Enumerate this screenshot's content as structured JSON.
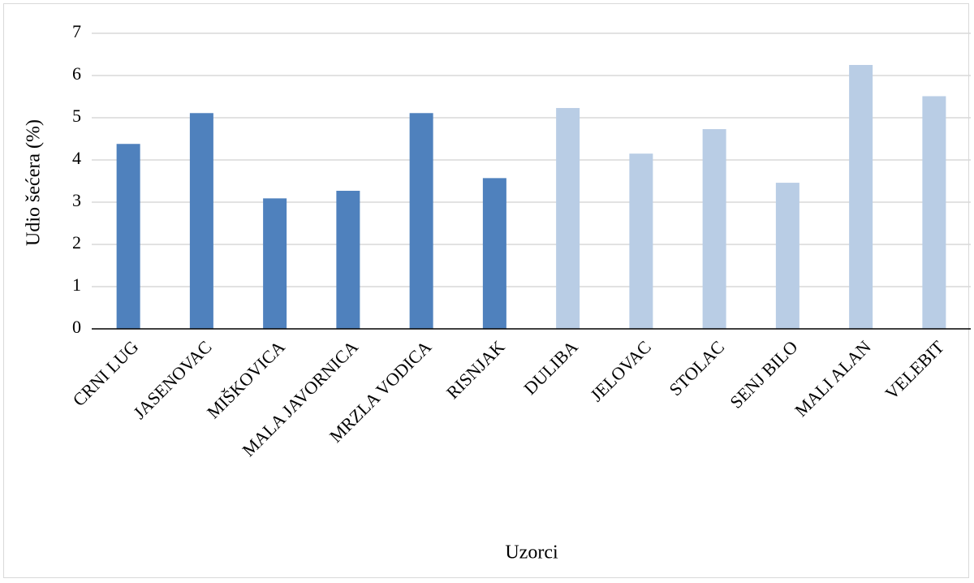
{
  "chart_data": {
    "type": "bar",
    "xlabel": "Uzorci",
    "ylabel": "Udio šećera (%)",
    "ylim": [
      0,
      7
    ],
    "yticks": [
      0,
      1,
      2,
      3,
      4,
      5,
      6,
      7
    ],
    "grid": true,
    "legend": "none",
    "categories": [
      "CRNI LUG",
      "JASENOVAC",
      "MIŠKOVICA",
      "MALA JAVORNICA",
      "MRZLA VODICA",
      "RISNJAK",
      "DULIBA",
      "JELOVAC",
      "STOLAC",
      "SENJ BILO",
      "MALI ALAN",
      "VELEBIT"
    ],
    "values": [
      4.38,
      5.11,
      3.09,
      3.27,
      5.11,
      3.57,
      5.23,
      4.15,
      4.73,
      3.46,
      6.25,
      5.51
    ],
    "bar_colors": [
      "#4f81bd",
      "#4f81bd",
      "#4f81bd",
      "#4f81bd",
      "#4f81bd",
      "#4f81bd",
      "#b9cde5",
      "#b9cde5",
      "#b9cde5",
      "#b9cde5",
      "#b9cde5",
      "#b9cde5"
    ],
    "grid_color": "#d9d9d9",
    "axis_color": "#000000"
  }
}
